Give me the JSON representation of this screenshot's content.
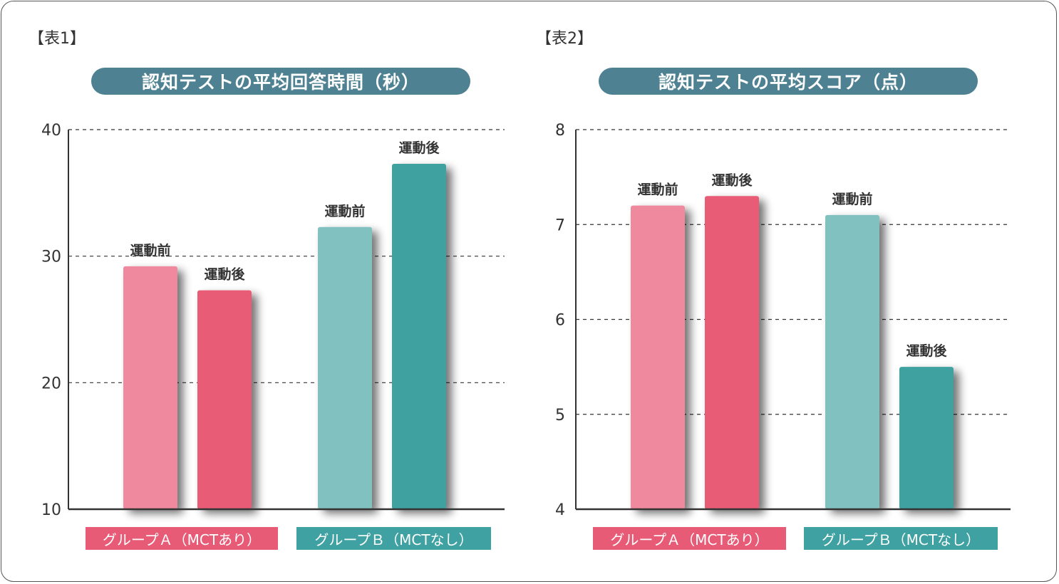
{
  "colors": {
    "pink_light": "#ef8a9e",
    "pink_dark": "#e85b76",
    "teal_light": "#81c1c0",
    "teal_dark": "#3fa1a1",
    "title_bg": "#4e8293",
    "axis": "#333333"
  },
  "chart_data": [
    {
      "type": "bar",
      "panel_label": "【表1】",
      "title": "認知テストの平均回答時間（秒）",
      "xlabel": "",
      "ylabel": "",
      "ylim": [
        10,
        40
      ],
      "yticks": [
        10,
        20,
        30,
        40
      ],
      "grid": true,
      "categories": [
        "グループＡ（MCTあり）",
        "グループＢ（MCTなし）"
      ],
      "series": [
        {
          "name": "運動前",
          "values": [
            29.2,
            32.3
          ]
        },
        {
          "name": "運動後",
          "values": [
            27.3,
            37.3
          ]
        }
      ],
      "bar_labels": [
        [
          "運動前",
          "運動後"
        ],
        [
          "運動前",
          "運動後"
        ]
      ]
    },
    {
      "type": "bar",
      "panel_label": "【表2】",
      "title": "認知テストの平均スコア（点）",
      "xlabel": "",
      "ylabel": "",
      "ylim": [
        4,
        8
      ],
      "yticks": [
        4,
        5,
        6,
        7,
        8
      ],
      "grid": true,
      "categories": [
        "グループＡ（MCTあり）",
        "グループＢ（MCTなし）"
      ],
      "series": [
        {
          "name": "運動前",
          "values": [
            7.2,
            7.1
          ]
        },
        {
          "name": "運動後",
          "values": [
            7.3,
            5.5
          ]
        }
      ],
      "bar_labels": [
        [
          "運動前",
          "運動後"
        ],
        [
          "運動前",
          "運動後"
        ]
      ]
    }
  ]
}
